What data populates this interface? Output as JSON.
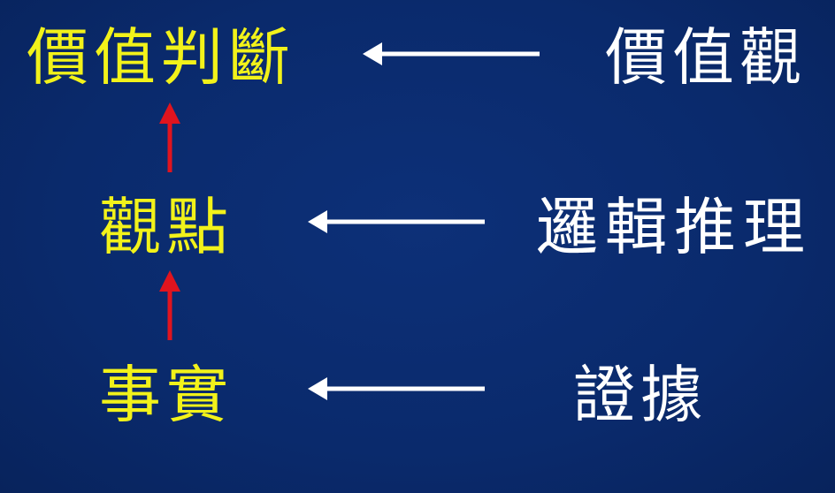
{
  "diagram": {
    "left_column": {
      "top": "價值判斷",
      "middle": "觀點",
      "bottom": "事實"
    },
    "right_column": {
      "top": "價值觀",
      "middle": "邏輯推理",
      "bottom": "證據"
    },
    "colors": {
      "background": "#0a2a6c",
      "left_text": "#f2f21a",
      "right_text": "#ffffff",
      "vertical_arrows": "#e0141e",
      "horizontal_arrows": "#ffffff"
    }
  }
}
